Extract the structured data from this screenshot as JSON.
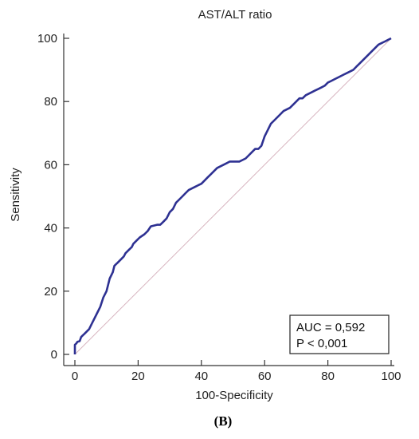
{
  "panel_label": "(B)",
  "annotation": {
    "auc_text": "AUC = 0,592",
    "p_text": "P < 0,001"
  },
  "colors": {
    "roc_curve": "#2e3192",
    "reference_line": "#d7b4bf",
    "axis": "#333333"
  },
  "chart_data": {
    "type": "line",
    "title": "AST/ALT ratio",
    "xlabel": "100-Specificity",
    "ylabel": "Sensitivity",
    "xlim": [
      0,
      100
    ],
    "ylim": [
      0,
      100
    ],
    "x_ticks": [
      0,
      20,
      40,
      60,
      80,
      100
    ],
    "y_ticks": [
      0,
      20,
      40,
      60,
      80,
      100
    ],
    "grid": false,
    "series": [
      {
        "x": [
          0,
          0,
          0.5,
          0.8,
          1.5,
          2,
          2.5,
          3,
          3.5,
          4.5,
          5.5,
          6.5,
          7,
          8,
          9,
          10,
          10.5,
          11,
          12,
          12.5,
          13,
          13.5,
          14.5,
          15.5,
          16,
          17,
          18,
          18.5,
          19.5,
          20.5,
          22,
          23,
          24,
          26,
          27,
          28,
          29,
          30,
          31,
          32,
          33,
          34,
          35,
          36,
          37,
          38,
          39,
          40,
          41,
          42,
          43,
          44,
          45,
          46,
          47,
          48,
          49,
          50,
          51,
          52,
          53,
          54,
          55,
          56,
          57,
          58,
          59,
          60,
          61,
          62,
          63,
          64,
          65,
          66,
          67,
          68,
          69,
          70,
          71,
          72,
          73,
          74,
          75,
          76,
          77,
          78,
          79,
          80,
          81,
          82,
          83,
          84,
          85,
          86,
          87,
          88,
          89,
          90,
          91,
          92,
          93,
          94,
          95,
          96,
          97,
          98,
          99,
          100
        ],
        "y": [
          0,
          3,
          3.5,
          4,
          4.2,
          5.5,
          6,
          6.5,
          7,
          8,
          10,
          12,
          13,
          15,
          18,
          20,
          22,
          24,
          26,
          28,
          28.5,
          29,
          30,
          31,
          32,
          33,
          34,
          35,
          36,
          37,
          38,
          39,
          40.5,
          41,
          41,
          42,
          43,
          45,
          46,
          48,
          49,
          50,
          51,
          52,
          52.5,
          53,
          53.5,
          54,
          55,
          56,
          57,
          58,
          59,
          59.5,
          60,
          60.5,
          61,
          61,
          61,
          61,
          61.5,
          62,
          63,
          64,
          65,
          65,
          66,
          69,
          71,
          73,
          74,
          75,
          76,
          77,
          77.5,
          78,
          79,
          80,
          81,
          81,
          82,
          82.5,
          83,
          83.5,
          84,
          84.5,
          85,
          86,
          86.5,
          87,
          87.5,
          88,
          88.5,
          89,
          89.5,
          90,
          91,
          92,
          93,
          94,
          95,
          96,
          97,
          98,
          98.5,
          99,
          99.5,
          100
        ]
      }
    ],
    "reference_line": {
      "x": [
        0,
        100
      ],
      "y": [
        0,
        100
      ]
    }
  }
}
